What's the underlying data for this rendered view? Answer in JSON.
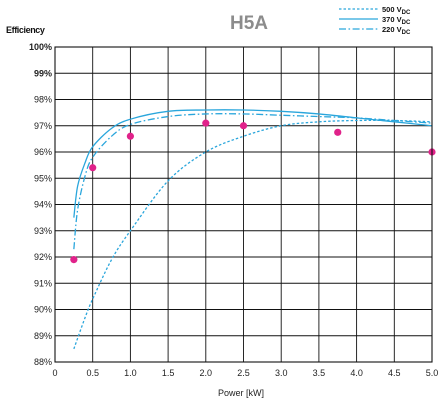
{
  "chart_data": {
    "type": "line",
    "title": "H5A",
    "ylabel": "Efficiency",
    "xlabel": "Power [kW]",
    "xlim": [
      0,
      5.0
    ],
    "ylim": [
      88,
      100
    ],
    "x_ticks": [
      "0",
      "0.5",
      "1.0",
      "1.5",
      "2.0",
      "2.5",
      "3.0",
      "3.5",
      "4.0",
      "4.5",
      "5.0"
    ],
    "y_ticks": [
      "88%",
      "89%",
      "90%",
      "91%",
      "92%",
      "93%",
      "94%",
      "95%",
      "96%",
      "97%",
      "98%",
      "99%",
      "100%"
    ],
    "grid": true,
    "legend_position": "top-right",
    "colors": {
      "series": "#2aa6dc",
      "markers": "#e0228a",
      "grid": "#111111"
    },
    "series": [
      {
        "name": "500 V",
        "subscript": "DC",
        "style": "dotted",
        "x": [
          0.25,
          0.4,
          0.5,
          0.75,
          1.0,
          1.5,
          2.0,
          2.5,
          3.0,
          3.5,
          4.0,
          4.5,
          5.0
        ],
        "y": [
          88.5,
          89.7,
          90.4,
          91.9,
          93.0,
          94.9,
          96.0,
          96.6,
          97.0,
          97.15,
          97.2,
          97.2,
          97.15
        ]
      },
      {
        "name": "370 V",
        "subscript": "DC",
        "style": "solid",
        "x": [
          0.25,
          0.3,
          0.4,
          0.5,
          0.75,
          1.0,
          1.5,
          2.0,
          2.5,
          3.0,
          3.5,
          4.0,
          4.5,
          5.0
        ],
        "y": [
          93.5,
          94.7,
          95.6,
          96.2,
          96.9,
          97.25,
          97.55,
          97.6,
          97.6,
          97.55,
          97.45,
          97.3,
          97.15,
          97.0
        ]
      },
      {
        "name": "220 V",
        "subscript": "DC",
        "style": "dash-dot",
        "x": [
          0.25,
          0.3,
          0.4,
          0.5,
          0.75,
          1.0,
          1.5,
          2.0,
          2.5,
          3.0,
          3.5,
          4.0,
          4.5,
          5.0
        ],
        "y": [
          92.3,
          93.8,
          95.1,
          95.8,
          96.6,
          97.05,
          97.35,
          97.45,
          97.45,
          97.4,
          97.35,
          97.3,
          97.2,
          97.1
        ]
      }
    ],
    "markers": {
      "x": [
        0.25,
        0.5,
        1.0,
        2.0,
        2.5,
        3.75,
        5.0
      ],
      "y": [
        91.9,
        95.4,
        96.6,
        97.1,
        97.0,
        96.75,
        96.0
      ]
    }
  }
}
